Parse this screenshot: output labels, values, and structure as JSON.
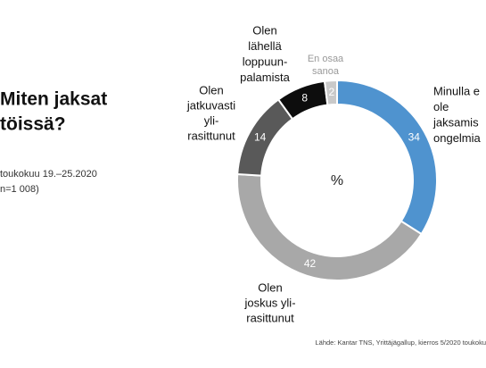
{
  "title_lines": [
    "Miten jaksat",
    "töissä?"
  ],
  "subtitle_lines": [
    "toukokuu 19.–25.2020",
    "n=1 008)"
  ],
  "source": "Lähde: Kantar TNS, Yrittäjägallup, kierros 5/2020 toukoku",
  "chart_data": {
    "type": "donut",
    "center_label": "%",
    "categories": [
      [
        "Minulla e",
        "ole",
        "jaksamis",
        "ongelmia"
      ],
      [
        "Olen",
        "joskus yli-",
        "rasittunut"
      ],
      [
        "Olen",
        "jatkuvasti",
        "yli-",
        "rasittunut"
      ],
      [
        "Olen",
        "lähellä",
        "loppuun-",
        "palamista"
      ],
      [
        "En osaa",
        "sanoa"
      ]
    ],
    "values": [
      34,
      42,
      14,
      8,
      2
    ],
    "colors": [
      "#4f93cf",
      "#a8a8a8",
      "#595959",
      "#0d0d0d",
      "#c9c9c9"
    ]
  }
}
